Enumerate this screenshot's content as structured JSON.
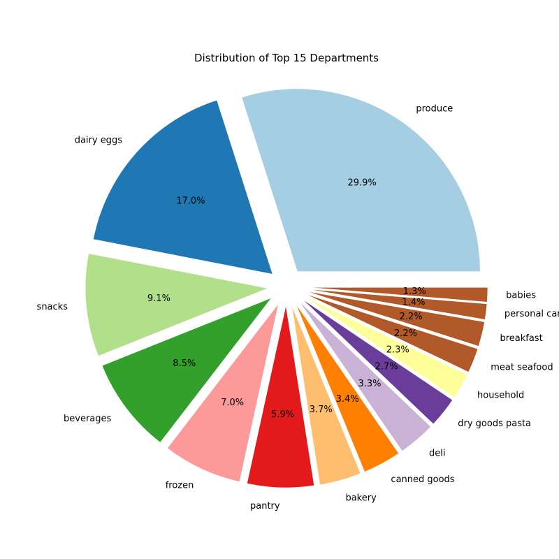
{
  "chart_data": {
    "type": "pie",
    "title": "Distribution of Top 15 Departments",
    "start_angle_deg": 0,
    "direction": "counterclockwise",
    "slices": [
      {
        "label": "produce",
        "percent": 29.9,
        "pct_text": "29.9%",
        "color": "#a6cee3"
      },
      {
        "label": "dairy eggs",
        "percent": 17.0,
        "pct_text": "17.0%",
        "color": "#1f78b4"
      },
      {
        "label": "snacks",
        "percent": 9.1,
        "pct_text": "9.1%",
        "color": "#b2df8a"
      },
      {
        "label": "beverages",
        "percent": 8.5,
        "pct_text": "8.5%",
        "color": "#33a02c"
      },
      {
        "label": "frozen",
        "percent": 7.0,
        "pct_text": "7.0%",
        "color": "#fb9a99"
      },
      {
        "label": "pantry",
        "percent": 5.9,
        "pct_text": "5.9%",
        "color": "#e31a1c"
      },
      {
        "label": "bakery",
        "percent": 3.7,
        "pct_text": "3.7%",
        "color": "#fdbf6f"
      },
      {
        "label": "canned goods",
        "percent": 3.4,
        "pct_text": "3.4%",
        "color": "#ff7f00"
      },
      {
        "label": "deli",
        "percent": 3.3,
        "pct_text": "3.3%",
        "color": "#cab2d6"
      },
      {
        "label": "dry goods pasta",
        "percent": 2.7,
        "pct_text": "2.7%",
        "color": "#6a3d9a"
      },
      {
        "label": "household",
        "percent": 2.3,
        "pct_text": "2.3%",
        "color": "#ffff99"
      },
      {
        "label": "meat seafood",
        "percent": 2.2,
        "pct_text": "2.2%",
        "color": "#b15928"
      },
      {
        "label": "breakfast",
        "percent": 2.2,
        "pct_text": "2.2%",
        "color": "#b15928"
      },
      {
        "label": "personal care",
        "percent": 1.4,
        "pct_text": "1.4%",
        "color": "#b15928"
      },
      {
        "label": "babies",
        "percent": 1.3,
        "pct_text": "1.3%",
        "color": "#b15928"
      }
    ]
  }
}
